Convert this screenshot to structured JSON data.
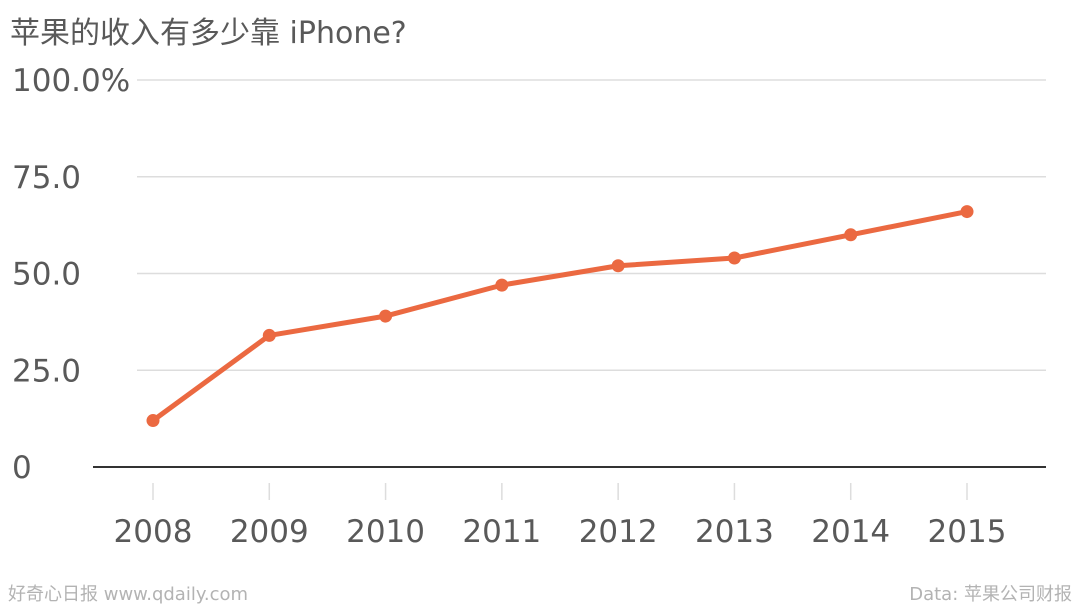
{
  "title": "苹果的收入有多少靠 iPhone?",
  "footer": {
    "source_left": "好奇心日报 www.qdaily.com",
    "source_right": "Data: 苹果公司财报"
  },
  "colors": {
    "line": "#eb6941",
    "grid": "#dddddd",
    "axis": "#333333",
    "text": "#595959"
  },
  "chart_data": {
    "type": "line",
    "title": "苹果的收入有多少靠 iPhone?",
    "categories": [
      "2008",
      "2009",
      "2010",
      "2011",
      "2012",
      "2013",
      "2014",
      "2015"
    ],
    "series": [
      {
        "values": [
          12,
          34,
          39,
          47,
          52,
          54,
          60,
          66
        ]
      }
    ],
    "yticks": [
      "0",
      "25.0",
      "50.0",
      "75.0",
      "100.0%"
    ],
    "ytick_values": [
      0,
      25,
      50,
      75,
      100
    ],
    "ylim": [
      0,
      100
    ],
    "grid": true,
    "legend": "none"
  }
}
